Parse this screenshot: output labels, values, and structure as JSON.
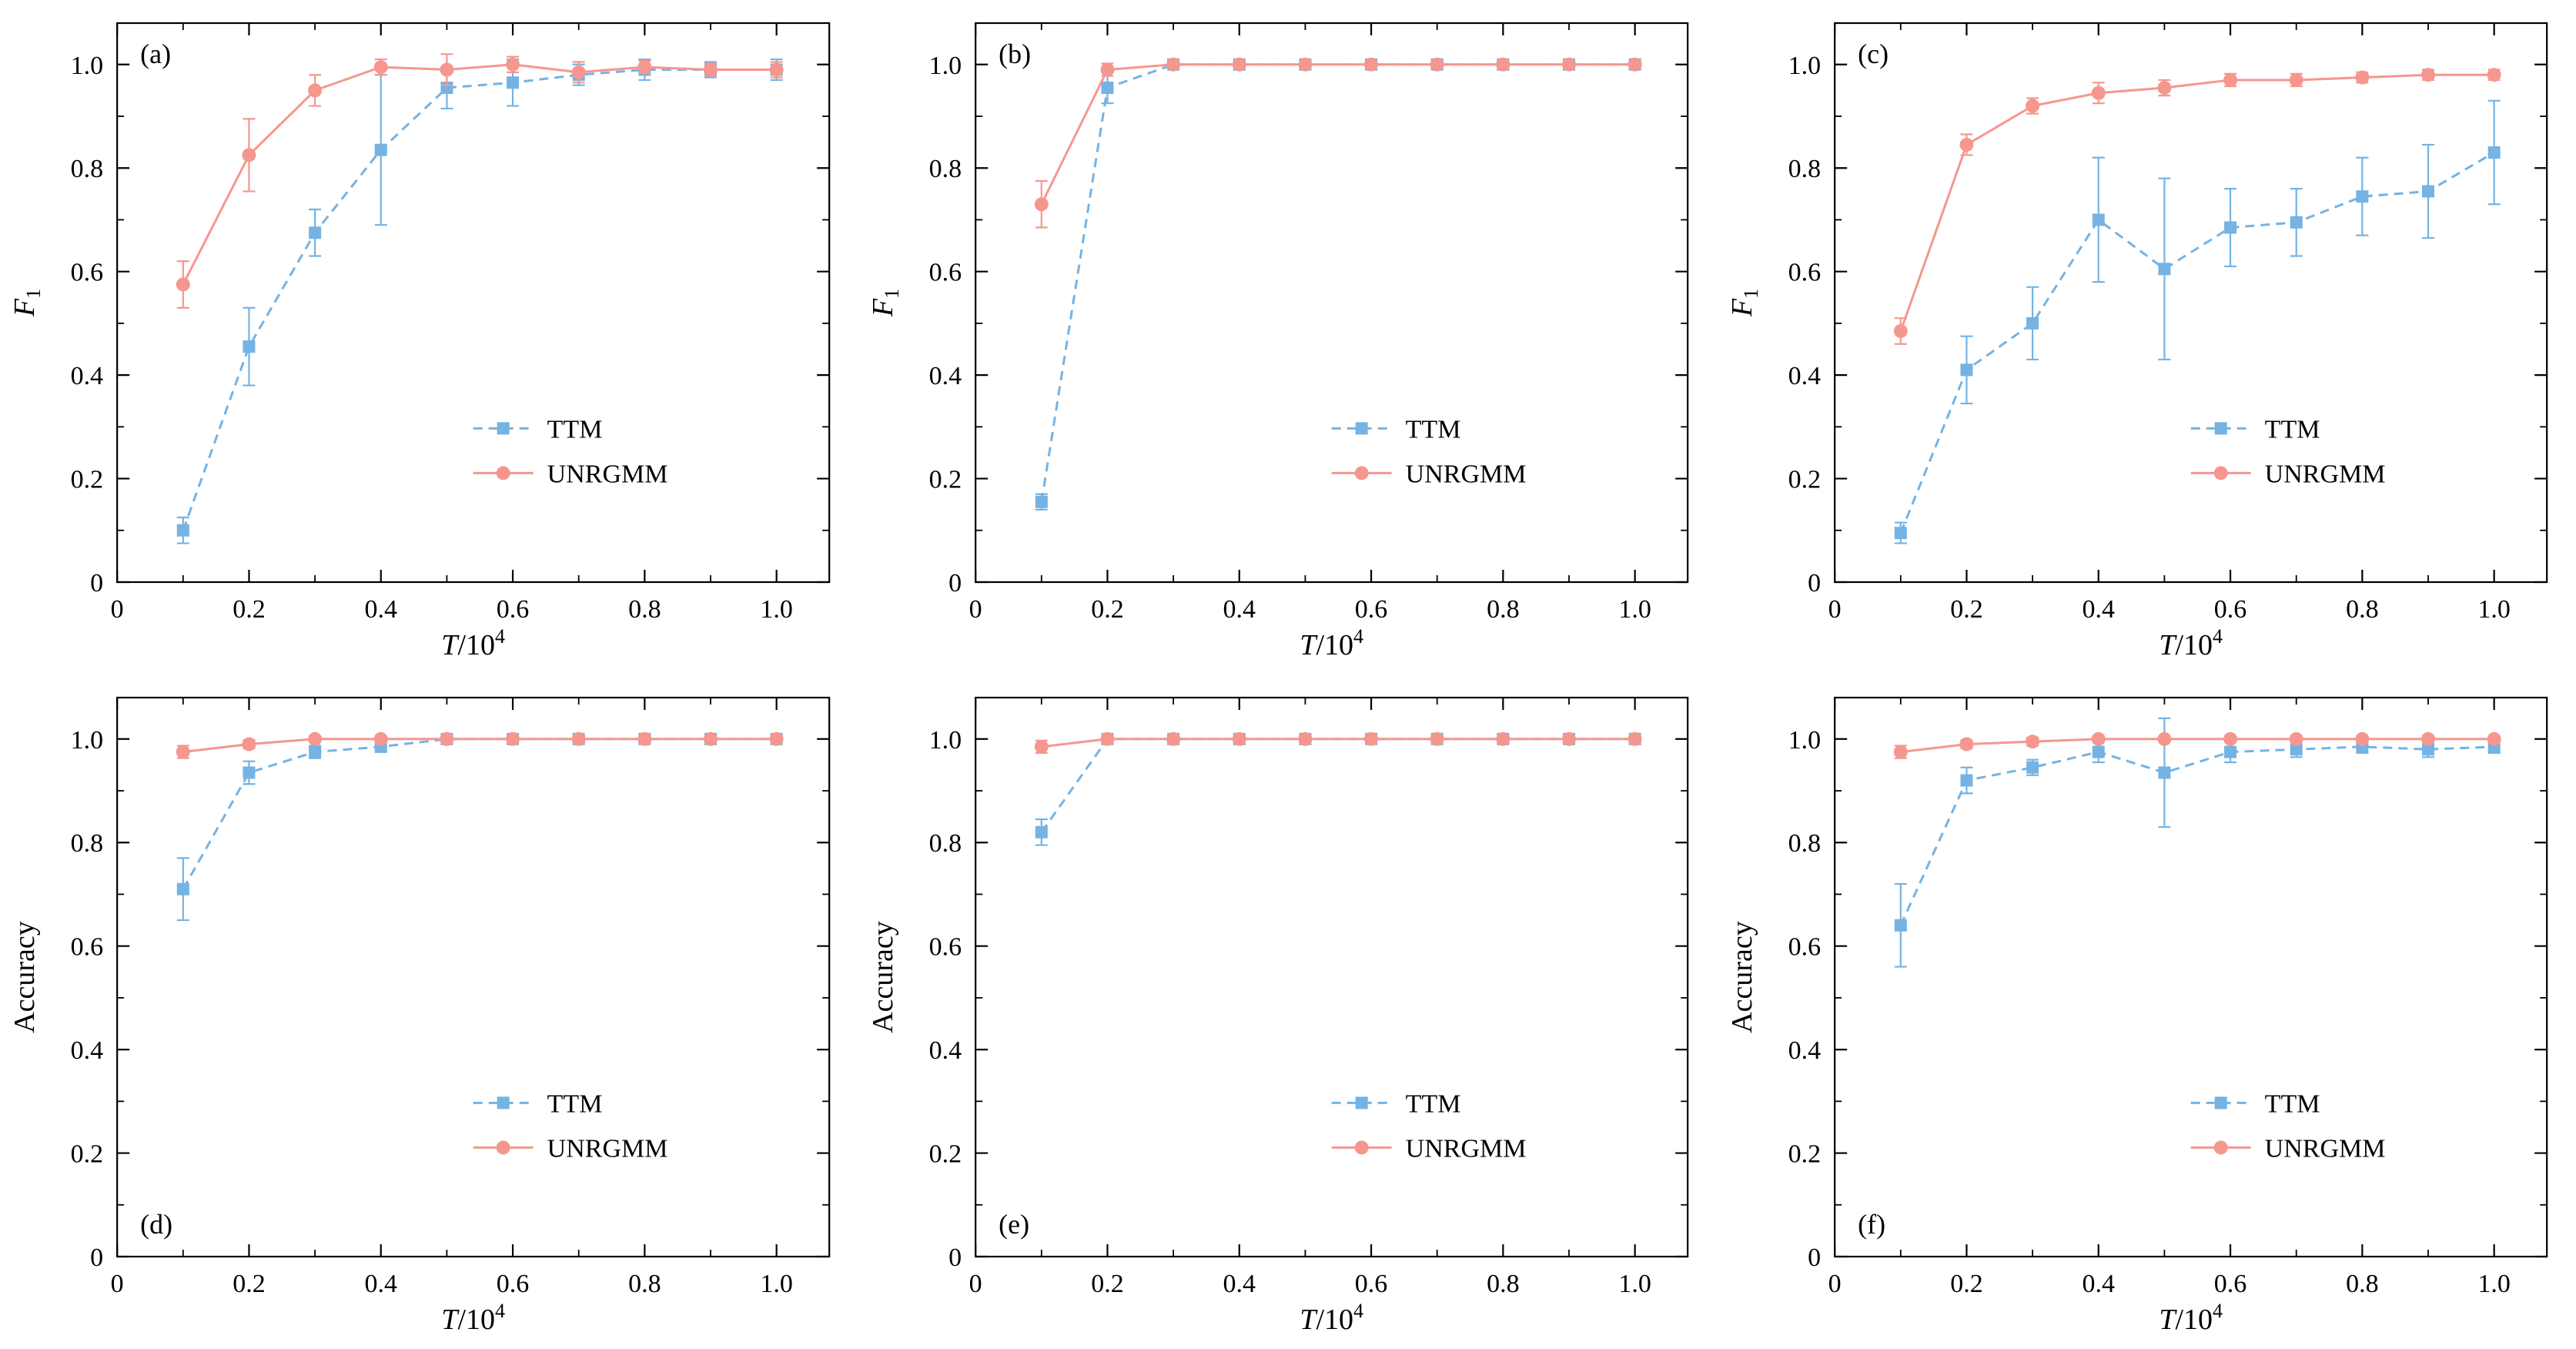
{
  "figure": {
    "background": "#ffffff",
    "axis_color": "#000000",
    "colors": {
      "ttm": "#74b3e3",
      "unrgmm": "#f5978e"
    },
    "legend": {
      "labels": [
        "TTM",
        "UNRGMM"
      ]
    },
    "x_axis": {
      "label_main": "T",
      "label_rest": "/10",
      "label_exp": "4",
      "ticks": [
        "0",
        "0.2",
        "0.4",
        "0.6",
        "0.8",
        "1.0"
      ],
      "tick_values": [
        0,
        0.2,
        0.4,
        0.6,
        0.8,
        1.0
      ],
      "minor_values": [
        0.1,
        0.3,
        0.5,
        0.7,
        0.9
      ],
      "lim": [
        0,
        1.08
      ]
    },
    "y_axis": {
      "ticks": [
        "0",
        "0.2",
        "0.4",
        "0.6",
        "0.8",
        "1.0"
      ],
      "tick_values": [
        0,
        0.2,
        0.4,
        0.6,
        0.8,
        1.0
      ],
      "minor_values": [
        0.1,
        0.3,
        0.5,
        0.7,
        0.9
      ],
      "lim": [
        0,
        1.08
      ],
      "f1_main": "F",
      "f1_sub": "1",
      "accuracy": "Accuracy"
    }
  },
  "chart_data": [
    {
      "type": "line",
      "panel": "(a)",
      "panel_label_pos": "top-left",
      "ylabel_type": "F1",
      "x": [
        0.1,
        0.2,
        0.3,
        0.4,
        0.5,
        0.6,
        0.7,
        0.8,
        0.9,
        1.0
      ],
      "xlabel": "T/10^4",
      "ylim": [
        0,
        1.08
      ],
      "series": [
        {
          "name": "TTM",
          "style": "dashed",
          "marker": "square",
          "values": [
            0.1,
            0.455,
            0.675,
            0.835,
            0.955,
            0.965,
            0.98,
            0.99,
            0.99,
            0.99
          ],
          "errors": [
            0.025,
            0.075,
            0.045,
            0.145,
            0.04,
            0.045,
            0.02,
            0.02,
            0.015,
            0.02
          ]
        },
        {
          "name": "UNRGMM",
          "style": "solid",
          "marker": "circle",
          "values": [
            0.575,
            0.825,
            0.95,
            0.995,
            0.99,
            1.0,
            0.985,
            0.995,
            0.99,
            0.99
          ],
          "errors": [
            0.045,
            0.07,
            0.03,
            0.015,
            0.03,
            0.015,
            0.02,
            0.012,
            0.012,
            0.015
          ]
        }
      ]
    },
    {
      "type": "line",
      "panel": "(b)",
      "panel_label_pos": "top-left",
      "ylabel_type": "F1",
      "x": [
        0.1,
        0.2,
        0.3,
        0.4,
        0.5,
        0.6,
        0.7,
        0.8,
        0.9,
        1.0
      ],
      "xlabel": "T/10^4",
      "ylim": [
        0,
        1.08
      ],
      "series": [
        {
          "name": "TTM",
          "style": "dashed",
          "marker": "square",
          "values": [
            0.155,
            0.955,
            1.0,
            1.0,
            1.0,
            1.0,
            1.0,
            1.0,
            1.0,
            1.0
          ],
          "errors": [
            0.015,
            0.03,
            0.005,
            0.005,
            0.005,
            0.005,
            0.005,
            0.005,
            0.005,
            0.005
          ]
        },
        {
          "name": "UNRGMM",
          "style": "solid",
          "marker": "circle",
          "values": [
            0.73,
            0.99,
            1.0,
            1.0,
            1.0,
            1.0,
            1.0,
            1.0,
            1.0,
            1.0
          ],
          "errors": [
            0.045,
            0.012,
            0.005,
            0.005,
            0.005,
            0.005,
            0.005,
            0.005,
            0.005,
            0.005
          ]
        }
      ]
    },
    {
      "type": "line",
      "panel": "(c)",
      "panel_label_pos": "top-left",
      "ylabel_type": "F1",
      "x": [
        0.1,
        0.2,
        0.3,
        0.4,
        0.5,
        0.6,
        0.7,
        0.8,
        0.9,
        1.0
      ],
      "xlabel": "T/10^4",
      "ylim": [
        0,
        1.08
      ],
      "series": [
        {
          "name": "TTM",
          "style": "dashed",
          "marker": "square",
          "values": [
            0.095,
            0.41,
            0.5,
            0.7,
            0.605,
            0.685,
            0.695,
            0.745,
            0.755,
            0.83
          ],
          "errors": [
            0.02,
            0.065,
            0.07,
            0.12,
            0.175,
            0.075,
            0.065,
            0.075,
            0.09,
            0.1
          ]
        },
        {
          "name": "UNRGMM",
          "style": "solid",
          "marker": "circle",
          "values": [
            0.485,
            0.845,
            0.92,
            0.945,
            0.955,
            0.97,
            0.97,
            0.975,
            0.98,
            0.98
          ],
          "errors": [
            0.025,
            0.02,
            0.015,
            0.02,
            0.015,
            0.012,
            0.012,
            0.01,
            0.01,
            0.01
          ]
        }
      ]
    },
    {
      "type": "line",
      "panel": "(d)",
      "panel_label_pos": "bottom-left",
      "ylabel_type": "Accuracy",
      "x": [
        0.1,
        0.2,
        0.3,
        0.4,
        0.5,
        0.6,
        0.7,
        0.8,
        0.9,
        1.0
      ],
      "xlabel": "T/10^4",
      "ylim": [
        0,
        1.08
      ],
      "series": [
        {
          "name": "TTM",
          "style": "dashed",
          "marker": "square",
          "values": [
            0.71,
            0.935,
            0.975,
            0.985,
            1.0,
            1.0,
            1.0,
            1.0,
            1.0,
            1.0
          ],
          "errors": [
            0.06,
            0.022,
            0.012,
            0.01,
            0.005,
            0.005,
            0.005,
            0.005,
            0.005,
            0.005
          ]
        },
        {
          "name": "UNRGMM",
          "style": "solid",
          "marker": "circle",
          "values": [
            0.975,
            0.99,
            1.0,
            1.0,
            1.0,
            1.0,
            1.0,
            1.0,
            1.0,
            1.0
          ],
          "errors": [
            0.012,
            0.008,
            0.005,
            0.005,
            0.005,
            0.005,
            0.005,
            0.005,
            0.005,
            0.005
          ]
        }
      ]
    },
    {
      "type": "line",
      "panel": "(e)",
      "panel_label_pos": "bottom-left",
      "ylabel_type": "Accuracy",
      "x": [
        0.1,
        0.2,
        0.3,
        0.4,
        0.5,
        0.6,
        0.7,
        0.8,
        0.9,
        1.0
      ],
      "xlabel": "T/10^4",
      "ylim": [
        0,
        1.08
      ],
      "series": [
        {
          "name": "TTM",
          "style": "dashed",
          "marker": "square",
          "values": [
            0.82,
            1.0,
            1.0,
            1.0,
            1.0,
            1.0,
            1.0,
            1.0,
            1.0,
            1.0
          ],
          "errors": [
            0.025,
            0.005,
            0.005,
            0.005,
            0.005,
            0.005,
            0.005,
            0.005,
            0.005,
            0.005
          ]
        },
        {
          "name": "UNRGMM",
          "style": "solid",
          "marker": "circle",
          "values": [
            0.985,
            1.0,
            1.0,
            1.0,
            1.0,
            1.0,
            1.0,
            1.0,
            1.0,
            1.0
          ],
          "errors": [
            0.012,
            0.005,
            0.005,
            0.005,
            0.005,
            0.005,
            0.005,
            0.005,
            0.005,
            0.005
          ]
        }
      ]
    },
    {
      "type": "line",
      "panel": "(f)",
      "panel_label_pos": "bottom-left",
      "ylabel_type": "Accuracy",
      "x": [
        0.1,
        0.2,
        0.3,
        0.4,
        0.5,
        0.6,
        0.7,
        0.8,
        0.9,
        1.0
      ],
      "xlabel": "T/10^4",
      "ylim": [
        0,
        1.08
      ],
      "series": [
        {
          "name": "TTM",
          "style": "dashed",
          "marker": "square",
          "values": [
            0.64,
            0.92,
            0.945,
            0.975,
            0.935,
            0.975,
            0.98,
            0.985,
            0.98,
            0.985
          ],
          "errors": [
            0.08,
            0.025,
            0.015,
            0.02,
            0.105,
            0.02,
            0.015,
            0.012,
            0.015,
            0.012
          ]
        },
        {
          "name": "UNRGMM",
          "style": "solid",
          "marker": "circle",
          "values": [
            0.975,
            0.99,
            0.995,
            1.0,
            1.0,
            1.0,
            1.0,
            1.0,
            1.0,
            1.0
          ],
          "errors": [
            0.012,
            0.008,
            0.008,
            0.005,
            0.005,
            0.005,
            0.005,
            0.005,
            0.005,
            0.005
          ]
        }
      ]
    }
  ]
}
